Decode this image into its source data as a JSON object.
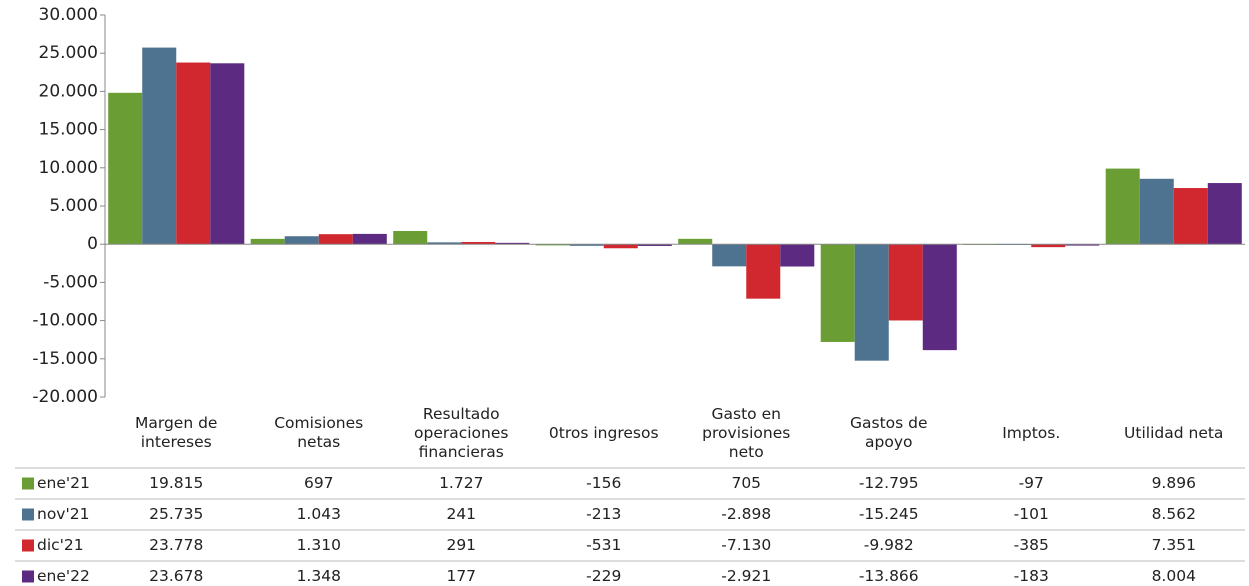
{
  "chart_data": {
    "type": "bar",
    "categories": [
      "Margen de\nintereses",
      "Comisiones\nnetas",
      "Resultado\noperaciones\nfinancieras",
      "0tros ingresos",
      "Gasto en\nprovisiones\nneto",
      "Gastos de\napoyo",
      "Imptos.",
      "Utilidad neta"
    ],
    "series": [
      {
        "name": "ene'21",
        "color": "#6a9e35",
        "values": [
          19815,
          697,
          1727,
          -156,
          705,
          -12795,
          -97,
          9896
        ],
        "value_labels": [
          "19.815",
          "697",
          "1.727",
          "-156",
          "705",
          "-12.795",
          "-97",
          "9.896"
        ]
      },
      {
        "name": "nov'21",
        "color": "#4e7390",
        "values": [
          25735,
          1043,
          241,
          -213,
          -2898,
          -15245,
          -101,
          8562
        ],
        "value_labels": [
          "25.735",
          "1.043",
          "241",
          "-213",
          "-2.898",
          "-15.245",
          "-101",
          "8.562"
        ]
      },
      {
        "name": "dic'21",
        "color": "#d0282e",
        "values": [
          23778,
          1310,
          291,
          -531,
          -7130,
          -9982,
          -385,
          7351
        ],
        "value_labels": [
          "23.778",
          "1.310",
          "291",
          "-531",
          "-7.130",
          "-9.982",
          "-385",
          "7.351"
        ]
      },
      {
        "name": "ene'22",
        "color": "#5c2a80",
        "values": [
          23678,
          1348,
          177,
          -229,
          -2921,
          -13866,
          -183,
          8004
        ],
        "value_labels": [
          "23.678",
          "1.348",
          "177",
          "-229",
          "-2.921",
          "-13.866",
          "-183",
          "8.004"
        ]
      }
    ],
    "ylim": [
      -20000,
      30000
    ],
    "yticks": [
      {
        "value": -20000,
        "label": "-20.000"
      },
      {
        "value": -15000,
        "label": "-15.000"
      },
      {
        "value": -10000,
        "label": "-10.000"
      },
      {
        "value": -5000,
        "label": "-5.000"
      },
      0,
      {
        "value": 5000,
        "label": "5.000"
      },
      {
        "value": 10000,
        "label": "10.000"
      },
      {
        "value": 15000,
        "label": "15.000"
      },
      {
        "value": 20000,
        "label": "20.000"
      },
      {
        "value": 25000,
        "label": "25.000"
      },
      {
        "value": 30000,
        "label": "30.000"
      }
    ],
    "grid": false
  }
}
